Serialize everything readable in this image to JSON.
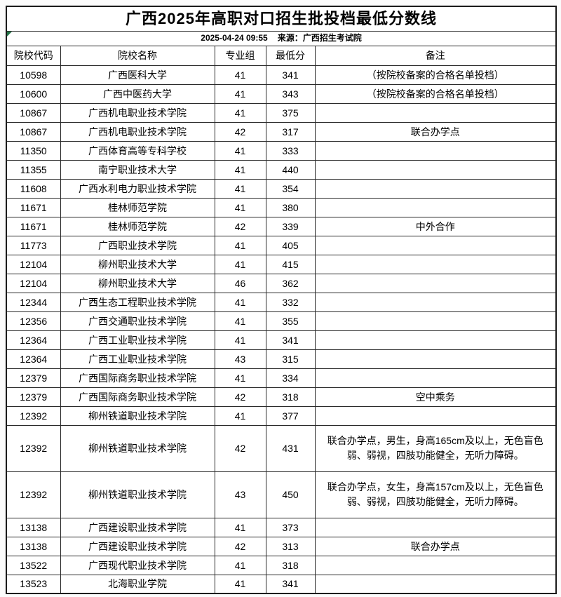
{
  "page": {
    "title": "广西2025年高职对口招生批投档最低分数线",
    "published_time": "2025-04-24 09:55",
    "source_label": "来源：广西招生考试院"
  },
  "colors": {
    "background": "#ffffff",
    "border": "#2a2a2a",
    "text": "#000000",
    "corner_flag_green": "#217346"
  },
  "table": {
    "columns": [
      "院校代码",
      "院校名称",
      "专业组",
      "最低分",
      "备注"
    ],
    "rows": [
      {
        "code": "10598",
        "name": "广西医科大学",
        "group": "41",
        "min_score": "341",
        "remark": "（按院校备案的合格名单投档）"
      },
      {
        "code": "10600",
        "name": "广西中医药大学",
        "group": "41",
        "min_score": "343",
        "remark": "（按院校备案的合格名单投档）"
      },
      {
        "code": "10867",
        "name": "广西机电职业技术学院",
        "group": "41",
        "min_score": "375",
        "remark": ""
      },
      {
        "code": "10867",
        "name": "广西机电职业技术学院",
        "group": "42",
        "min_score": "317",
        "remark": "联合办学点"
      },
      {
        "code": "11350",
        "name": "广西体育高等专科学校",
        "group": "41",
        "min_score": "333",
        "remark": ""
      },
      {
        "code": "11355",
        "name": "南宁职业技术大学",
        "group": "41",
        "min_score": "440",
        "remark": ""
      },
      {
        "code": "11608",
        "name": "广西水利电力职业技术学院",
        "group": "41",
        "min_score": "354",
        "remark": ""
      },
      {
        "code": "11671",
        "name": "桂林师范学院",
        "group": "41",
        "min_score": "380",
        "remark": ""
      },
      {
        "code": "11671",
        "name": "桂林师范学院",
        "group": "42",
        "min_score": "339",
        "remark": "中外合作"
      },
      {
        "code": "11773",
        "name": "广西职业技术学院",
        "group": "41",
        "min_score": "405",
        "remark": ""
      },
      {
        "code": "12104",
        "name": "柳州职业技术大学",
        "group": "41",
        "min_score": "415",
        "remark": ""
      },
      {
        "code": "12104",
        "name": "柳州职业技术大学",
        "group": "46",
        "min_score": "362",
        "remark": ""
      },
      {
        "code": "12344",
        "name": "广西生态工程职业技术学院",
        "group": "41",
        "min_score": "332",
        "remark": ""
      },
      {
        "code": "12356",
        "name": "广西交通职业技术学院",
        "group": "41",
        "min_score": "355",
        "remark": ""
      },
      {
        "code": "12364",
        "name": "广西工业职业技术学院",
        "group": "41",
        "min_score": "341",
        "remark": ""
      },
      {
        "code": "12364",
        "name": "广西工业职业技术学院",
        "group": "43",
        "min_score": "315",
        "remark": ""
      },
      {
        "code": "12379",
        "name": "广西国际商务职业技术学院",
        "group": "41",
        "min_score": "334",
        "remark": ""
      },
      {
        "code": "12379",
        "name": "广西国际商务职业技术学院",
        "group": "42",
        "min_score": "318",
        "remark": "空中乘务"
      },
      {
        "code": "12392",
        "name": "柳州铁道职业技术学院",
        "group": "41",
        "min_score": "377",
        "remark": ""
      },
      {
        "code": "12392",
        "name": "柳州铁道职业技术学院",
        "group": "42",
        "min_score": "431",
        "remark": "联合办学点，男生，身高165cm及以上，无色盲色弱、弱视，四肢功能健全，无听力障碍。"
      },
      {
        "code": "12392",
        "name": "柳州铁道职业技术学院",
        "group": "43",
        "min_score": "450",
        "remark": "联合办学点，女生，身高157cm及以上，无色盲色弱、弱视，四肢功能健全，无听力障碍。"
      },
      {
        "code": "13138",
        "name": "广西建设职业技术学院",
        "group": "41",
        "min_score": "373",
        "remark": ""
      },
      {
        "code": "13138",
        "name": "广西建设职业技术学院",
        "group": "42",
        "min_score": "313",
        "remark": "联合办学点"
      },
      {
        "code": "13522",
        "name": "广西现代职业技术学院",
        "group": "41",
        "min_score": "318",
        "remark": ""
      },
      {
        "code": "13523",
        "name": "北海职业学院",
        "group": "41",
        "min_score": "341",
        "remark": ""
      }
    ]
  }
}
